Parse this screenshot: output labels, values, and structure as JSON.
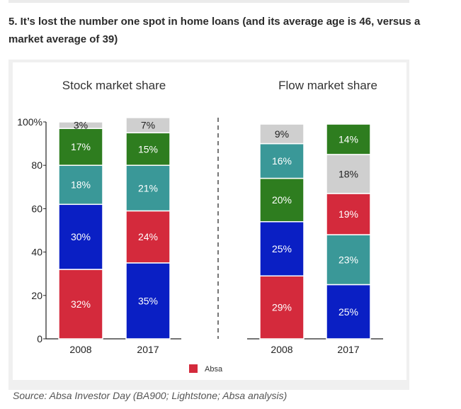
{
  "heading": "5. It’s lost the number one spot in home loans (and its average age is 46, versus a market average of 39)",
  "caption": "Source: Absa Investor Day (BA900; Lightstone; Absa analysis)",
  "colors": {
    "absa": "#d42a3c",
    "blue": "#0a1fc4",
    "teal": "#3a9898",
    "green": "#2e7d1f",
    "grey": "#cfcfcf"
  },
  "chart_data": {
    "type": "bar",
    "stacked": true,
    "ylim": [
      0,
      100
    ],
    "y_ticks": [
      "0",
      "20",
      "40",
      "60",
      "80",
      "100%"
    ],
    "legend": {
      "label": "Absa",
      "color": "#d42a3c",
      "placement": "bottom"
    },
    "panels": [
      {
        "title": "Stock market share",
        "categories": [
          "2008",
          "2017"
        ],
        "stacks": [
          [
            {
              "value": 32,
              "label": "32%",
              "color": "#d42a3c"
            },
            {
              "value": 30,
              "label": "30%",
              "color": "#0a1fc4"
            },
            {
              "value": 18,
              "label": "18%",
              "color": "#3a9898"
            },
            {
              "value": 17,
              "label": "17%",
              "color": "#2e7d1f"
            },
            {
              "value": 3,
              "label": "3%",
              "color": "#cfcfcf"
            }
          ],
          [
            {
              "value": 35,
              "label": "35%",
              "color": "#0a1fc4"
            },
            {
              "value": 24,
              "label": "24%",
              "color": "#d42a3c"
            },
            {
              "value": 21,
              "label": "21%",
              "color": "#3a9898"
            },
            {
              "value": 15,
              "label": "15%",
              "color": "#2e7d1f"
            },
            {
              "value": 7,
              "label": "7%",
              "color": "#cfcfcf"
            }
          ]
        ]
      },
      {
        "title": "Flow market share",
        "categories": [
          "2008",
          "2017"
        ],
        "stacks": [
          [
            {
              "value": 29,
              "label": "29%",
              "color": "#d42a3c"
            },
            {
              "value": 25,
              "label": "25%",
              "color": "#0a1fc4"
            },
            {
              "value": 20,
              "label": "20%",
              "color": "#2e7d1f"
            },
            {
              "value": 16,
              "label": "16%",
              "color": "#3a9898"
            },
            {
              "value": 9,
              "label": "9%",
              "color": "#cfcfcf"
            }
          ],
          [
            {
              "value": 25,
              "label": "25%",
              "color": "#0a1fc4"
            },
            {
              "value": 23,
              "label": "23%",
              "color": "#3a9898"
            },
            {
              "value": 19,
              "label": "19%",
              "color": "#d42a3c"
            },
            {
              "value": 18,
              "label": "18%",
              "color": "#cfcfcf"
            },
            {
              "value": 14,
              "label": "14%",
              "color": "#2e7d1f"
            }
          ]
        ]
      }
    ]
  }
}
